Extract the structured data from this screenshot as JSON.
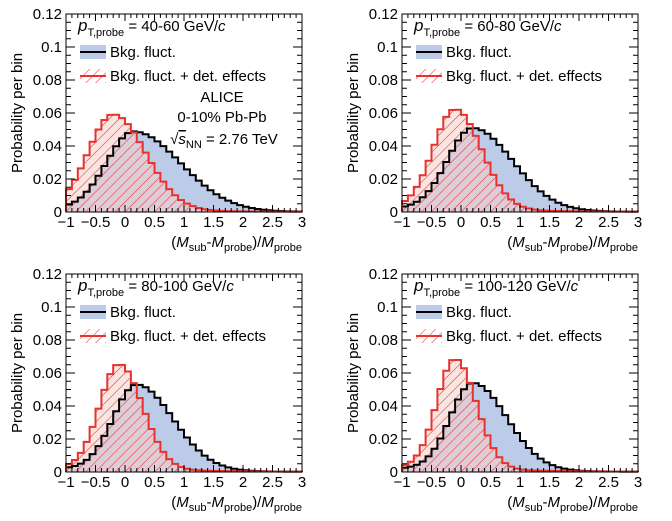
{
  "colors": {
    "background_fluctuations": "#000000",
    "background_fill": "#bccbe8",
    "detector_effects": "#e8322d",
    "hatch_fill_tint": "#f6d0cb"
  },
  "labels": {
    "x_axis": {
      "open_paren": "(",
      "m1": "M",
      "sub1": "sub",
      "dash": "-",
      "m2": "M",
      "sub2": "probe",
      "close_paren": ")/",
      "m3": "M",
      "sub3": "probe"
    },
    "y_axis": "Probability per bin",
    "pt_symbol": "p",
    "pt_subscript": "T,probe",
    "pt_units": "GeV/",
    "pt_c": "c",
    "legend": [
      "Bkg. fluct.",
      "Bkg. fluct. + det. effects"
    ],
    "experiment": "ALICE",
    "system": "0-10% Pb-Pb",
    "energy_sqrt": "√",
    "energy_s": "s",
    "energy_sub": "NN",
    "energy_value": " = 2.76 TeV"
  },
  "chart_data": [
    {
      "type": "bar",
      "pt_range": "40-60",
      "xlim": [
        -1,
        3
      ],
      "ylim": [
        0,
        0.12
      ],
      "x_ticks": [
        "−1",
        "−0.5",
        "0",
        "0.5",
        "1",
        "1.5",
        "2",
        "2.5",
        "3"
      ],
      "y_ticks": [
        "0",
        "0.02",
        "0.04",
        "0.06",
        "0.08",
        "0.1",
        "0.12"
      ],
      "bin_width": 0.1,
      "series": [
        {
          "name": "Bkg. fluct.",
          "peak_x": 0.15,
          "peak_value": 0.047,
          "sigma_left": 0.46,
          "sigma_right": 0.8
        },
        {
          "name": "Bkg. fluct. + det. effects",
          "peak_x": -0.2,
          "peak_value": 0.057,
          "sigma_left": 0.42,
          "sigma_right": 0.55
        }
      ],
      "show_system_info": true
    },
    {
      "type": "bar",
      "pt_range": "60-80",
      "xlim": [
        -1,
        3
      ],
      "ylim": [
        0,
        0.12
      ],
      "x_ticks": [
        "−1",
        "−0.5",
        "0",
        "0.5",
        "1",
        "1.5",
        "2",
        "2.5",
        "3"
      ],
      "y_ticks": [
        "0",
        "0.02",
        "0.04",
        "0.06",
        "0.08",
        "0.1",
        "0.12"
      ],
      "bin_width": 0.1,
      "series": [
        {
          "name": "Bkg. fluct.",
          "peak_x": 0.2,
          "peak_value": 0.049,
          "sigma_left": 0.43,
          "sigma_right": 0.68
        },
        {
          "name": "Bkg. fluct. + det. effects",
          "peak_x": -0.1,
          "peak_value": 0.06,
          "sigma_left": 0.37,
          "sigma_right": 0.45
        }
      ],
      "show_system_info": false
    },
    {
      "type": "bar",
      "pt_range": "80-100",
      "xlim": [
        -1,
        3
      ],
      "ylim": [
        0,
        0.12
      ],
      "x_ticks": [
        "−1",
        "−0.5",
        "0",
        "0.5",
        "1",
        "1.5",
        "2",
        "2.5",
        "3"
      ],
      "y_ticks": [
        "0",
        "0.02",
        "0.04",
        "0.06",
        "0.08",
        "0.1",
        "0.12"
      ],
      "bin_width": 0.1,
      "series": [
        {
          "name": "Bkg. fluct.",
          "peak_x": 0.2,
          "peak_value": 0.051,
          "sigma_left": 0.4,
          "sigma_right": 0.62
        },
        {
          "name": "Bkg. fluct. + det. effects",
          "peak_x": -0.1,
          "peak_value": 0.063,
          "sigma_left": 0.33,
          "sigma_right": 0.4
        }
      ],
      "show_system_info": false
    },
    {
      "type": "bar",
      "pt_range": "100-120",
      "xlim": [
        -1,
        3
      ],
      "ylim": [
        0,
        0.12
      ],
      "x_ticks": [
        "−1",
        "−0.5",
        "0",
        "0.5",
        "1",
        "1.5",
        "2",
        "2.5",
        "3"
      ],
      "y_ticks": [
        "0",
        "0.02",
        "0.04",
        "0.06",
        "0.08",
        "0.1",
        "0.12"
      ],
      "bin_width": 0.1,
      "series": [
        {
          "name": "Bkg. fluct.",
          "peak_x": 0.2,
          "peak_value": 0.052,
          "sigma_left": 0.38,
          "sigma_right": 0.58
        },
        {
          "name": "Bkg. fluct. + det. effects",
          "peak_x": -0.1,
          "peak_value": 0.066,
          "sigma_left": 0.31,
          "sigma_right": 0.36
        }
      ],
      "show_system_info": false
    }
  ]
}
